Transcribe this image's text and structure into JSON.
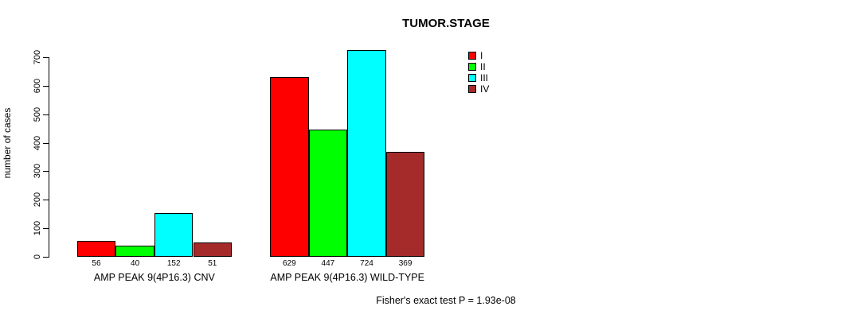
{
  "chart_data": {
    "type": "bar",
    "title": "TUMOR.STAGE",
    "ylabel": "number of cases",
    "xlabel": "",
    "ylim": [
      0,
      700
    ],
    "yticks": [
      0,
      100,
      200,
      300,
      400,
      500,
      600,
      700
    ],
    "grid": false,
    "legend_position": "top-right",
    "categories": [
      "AMP PEAK 9(4P16.3) CNV",
      "AMP PEAK 9(4P16.3) WILD-TYPE"
    ],
    "series": [
      {
        "name": "I",
        "color": "#FF0000",
        "values": [
          56,
          629
        ]
      },
      {
        "name": "II",
        "color": "#00FF00",
        "values": [
          40,
          447
        ]
      },
      {
        "name": "III",
        "color": "#00FFFF",
        "values": [
          152,
          724
        ]
      },
      {
        "name": "IV",
        "color": "#A52A2A",
        "values": [
          51,
          369
        ]
      }
    ],
    "bar_value_labels": [
      [
        56,
        40,
        152,
        51
      ],
      [
        629,
        447,
        724,
        369
      ]
    ],
    "annotation": "Fisher's exact test P = 1.93e-08"
  },
  "colors": {
    "axis": "#000000",
    "background": "#ffffff",
    "text": "#000000"
  }
}
